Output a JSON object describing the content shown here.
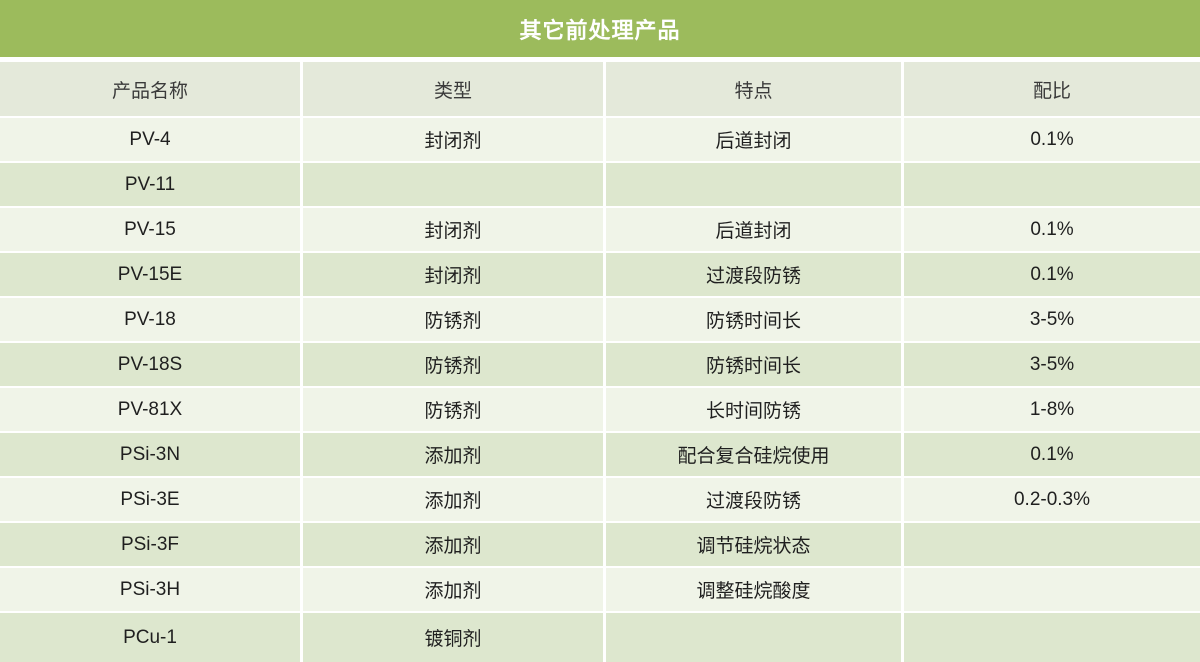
{
  "title": "其它前处理产品",
  "colors": {
    "title_bg": "#9cbb5c",
    "title_text": "#ffffff",
    "header_bg": "#e4e9da",
    "row_light_bg": "#f0f4e8",
    "row_dark_bg": "#dde7ce",
    "grid_line": "#ffffff",
    "body_text": "#1f1f1f"
  },
  "table": {
    "columns": [
      "产品名称",
      "类型",
      "特点",
      "配比"
    ],
    "rows": [
      {
        "name": "PV-4",
        "type": "封闭剂",
        "feature": "后道封闭",
        "ratio": "0.1%"
      },
      {
        "name": "PV-11",
        "type": "",
        "feature": "",
        "ratio": ""
      },
      {
        "name": "PV-15",
        "type": "封闭剂",
        "feature": "后道封闭",
        "ratio": "0.1%"
      },
      {
        "name": "PV-15E",
        "type": "封闭剂",
        "feature": "过渡段防锈",
        "ratio": "0.1%"
      },
      {
        "name": "PV-18",
        "type": "防锈剂",
        "feature": "防锈时间长",
        "ratio": "3-5%"
      },
      {
        "name": "PV-18S",
        "type": "防锈剂",
        "feature": "防锈时间长",
        "ratio": "3-5%"
      },
      {
        "name": "PV-81X",
        "type": "防锈剂",
        "feature": "长时间防锈",
        "ratio": "1-8%"
      },
      {
        "name": "PSi-3N",
        "type": "添加剂",
        "feature": "配合复合硅烷使用",
        "ratio": "0.1%"
      },
      {
        "name": "PSi-3E",
        "type": "添加剂",
        "feature": "过渡段防锈",
        "ratio": "0.2-0.3%"
      },
      {
        "name": "PSi-3F",
        "type": "添加剂",
        "feature": "调节硅烷状态",
        "ratio": ""
      },
      {
        "name": "PSi-3H",
        "type": "添加剂",
        "feature": "调整硅烷酸度",
        "ratio": ""
      },
      {
        "name": "PCu-1",
        "type": "镀铜剂",
        "feature": "",
        "ratio": ""
      }
    ]
  }
}
